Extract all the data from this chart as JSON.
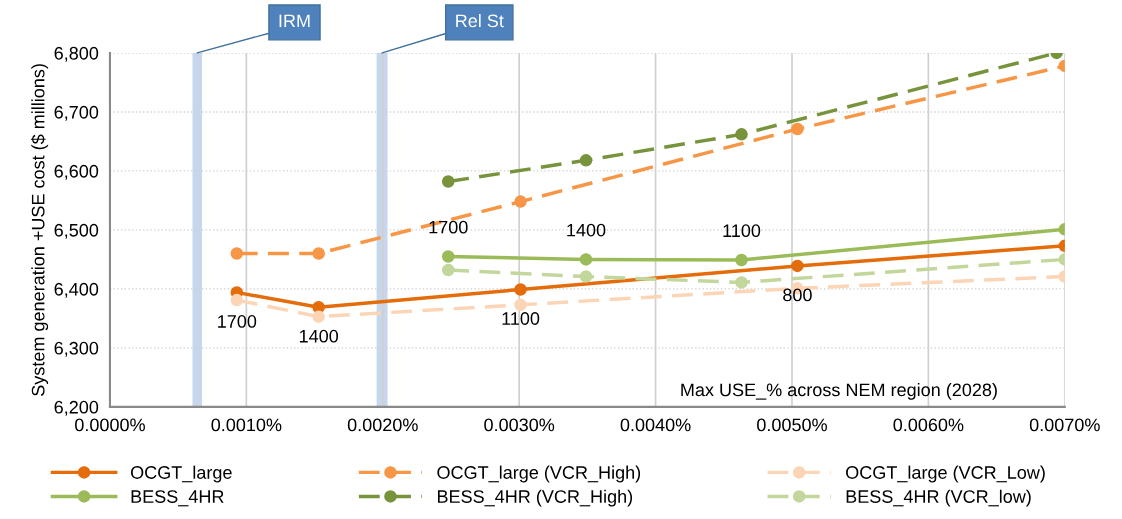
{
  "chart_data": {
    "type": "line",
    "xlabel": "Max USE_% across NEM region (2028)",
    "ylabel": "System generation +USE cost ($ millions)",
    "xlim": [
      0,
      0.007
    ],
    "ylim": [
      6200,
      6800
    ],
    "xticks": [
      {
        "value": 0,
        "label": "0.0000%"
      },
      {
        "value": 0.001,
        "label": "0.0010%"
      },
      {
        "value": 0.002,
        "label": "0.0020%"
      },
      {
        "value": 0.003,
        "label": "0.0030%"
      },
      {
        "value": 0.004,
        "label": "0.0040%"
      },
      {
        "value": 0.005,
        "label": "0.0050%"
      },
      {
        "value": 0.006,
        "label": "0.0060%"
      },
      {
        "value": 0.007,
        "label": "0.0070%"
      }
    ],
    "yticks": [
      {
        "value": 6200,
        "label": "6,200"
      },
      {
        "value": 6300,
        "label": "6,300"
      },
      {
        "value": 6400,
        "label": "6,400"
      },
      {
        "value": 6500,
        "label": "6,500"
      },
      {
        "value": 6600,
        "label": "6,600"
      },
      {
        "value": 6700,
        "label": "6,700"
      },
      {
        "value": 6800,
        "label": "6,800"
      }
    ],
    "grid": true,
    "legend": "bottom",
    "marker": "circle",
    "series": [
      {
        "name": "OCGT_large",
        "color": "#e46c0a",
        "line_style": "solid",
        "x": [
          0.00093,
          0.00153,
          0.00301,
          0.00504,
          0.007
        ],
        "values": [
          6394,
          6369,
          6399,
          6439,
          6473
        ]
      },
      {
        "name": "OCGT_large (VCR_High)",
        "color": "#f79646",
        "line_style": "dashed",
        "x": [
          0.00093,
          0.00153,
          0.00301,
          0.00504,
          0.007
        ],
        "values": [
          6460,
          6460,
          6548,
          6671,
          6778
        ]
      },
      {
        "name": "OCGT_large (VCR_Low)",
        "color": "#fbd5b5",
        "line_style": "dashed",
        "x": [
          0.00093,
          0.00153,
          0.00301,
          0.00504,
          0.007
        ],
        "values": [
          6381,
          6353,
          6373,
          6401,
          6421
        ]
      },
      {
        "name": "BESS_4HR",
        "color": "#9bbb59",
        "line_style": "solid",
        "x": [
          0.00248,
          0.00349,
          0.00463,
          0.007
        ],
        "values": [
          6455,
          6450,
          6449,
          6501
        ]
      },
      {
        "name": "BESS_4HR (VCR_High)",
        "color": "#77933c",
        "line_style": "dashed",
        "x": [
          0.00248,
          0.00349,
          0.00463,
          0.00694
        ],
        "values": [
          6582,
          6618,
          6662,
          6800
        ]
      },
      {
        "name": "BESS_4HR (VCR_low)",
        "color": "#c3d69b",
        "line_style": "dashed",
        "x": [
          0.00248,
          0.00349,
          0.00463,
          0.007
        ],
        "values": [
          6432,
          6421,
          6411,
          6450
        ]
      }
    ],
    "bands": [
      {
        "axis": "x",
        "from": 0.00061,
        "to": 0.00067,
        "label": "IRM",
        "color": "#c6d6ec"
      },
      {
        "axis": "x",
        "from": 0.00196,
        "to": 0.00203,
        "label": "Rel St",
        "color": "#c6d6ec"
      }
    ],
    "annotations": [
      {
        "text": "1700",
        "x": 0.00093,
        "y": 6394
      },
      {
        "text": "1400",
        "x": 0.00153,
        "y": 6369
      },
      {
        "text": "1100",
        "x": 0.00301,
        "y": 6399
      },
      {
        "text": "800",
        "x": 0.00504,
        "y": 6439
      },
      {
        "text": "1700",
        "x": 0.00248,
        "y": 6455
      },
      {
        "text": "1400",
        "x": 0.00349,
        "y": 6450
      },
      {
        "text": "1100",
        "x": 0.00463,
        "y": 6449
      }
    ]
  }
}
